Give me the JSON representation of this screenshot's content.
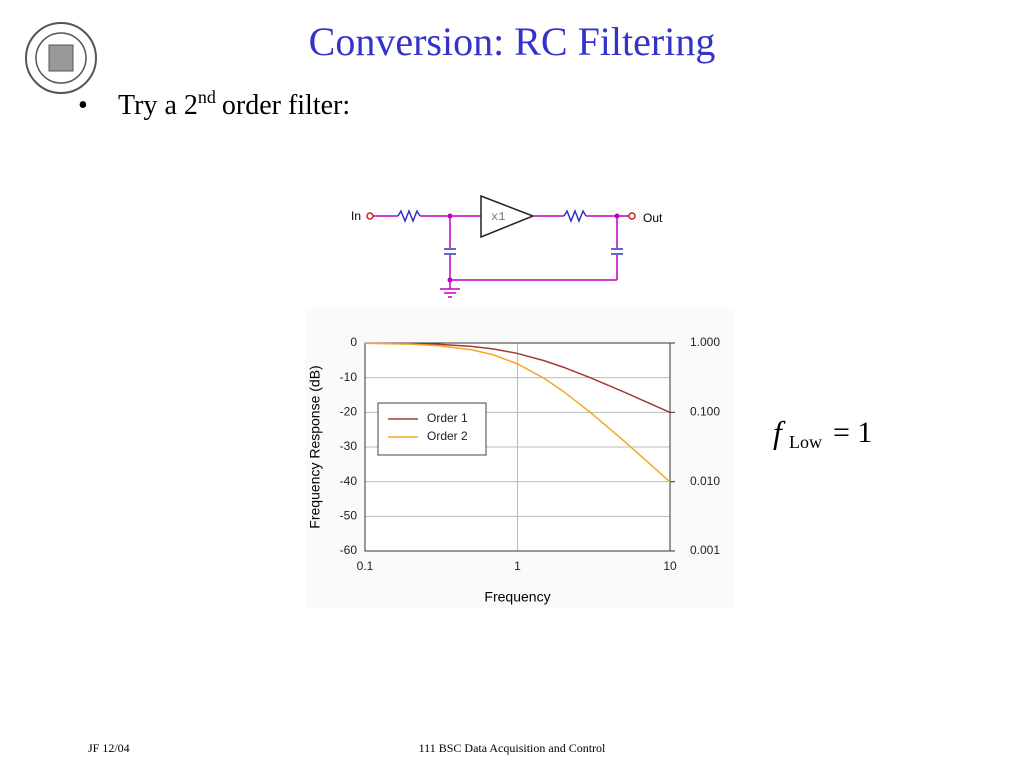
{
  "slide": {
    "title": "Conversion: RC Filtering",
    "bullet": {
      "marker": "•",
      "text": "Try a 2",
      "sup": "nd",
      "rest": "order filter:"
    },
    "circuit": {
      "input": "In",
      "output": "Out",
      "buffer": "x1"
    },
    "formula": {
      "lhs": "f",
      "sub": "Low",
      "rhs": "= 1"
    },
    "footer": {
      "left": "JF 12/04",
      "center": "111 BSC Data Acquisition and Control"
    }
  },
  "chart_data": {
    "type": "line",
    "x_label": "Frequency",
    "y_label": "Frequency Response (dB)",
    "x": [
      0.1,
      0.2,
      0.3,
      0.5,
      0.7,
      1,
      1.5,
      2,
      3,
      5,
      7,
      10
    ],
    "series": [
      {
        "name": "Order 1",
        "color": "#a33a3a",
        "values": [
          -0.04,
          -0.17,
          -0.37,
          -0.97,
          -1.74,
          -3.01,
          -5.12,
          -6.99,
          -10,
          -14.15,
          -17,
          -20.04
        ]
      },
      {
        "name": "Order 2",
        "color": "#f5a623",
        "values": [
          -0.09,
          -0.34,
          -0.75,
          -1.94,
          -3.47,
          -6.02,
          -10.24,
          -13.98,
          -20,
          -28.3,
          -34,
          -40.09
        ]
      }
    ],
    "xlim": [
      0.1,
      10
    ],
    "xticks": [
      0.1,
      1,
      10
    ],
    "xlog": true,
    "ylim": [
      -60,
      0
    ],
    "yticks": [
      0,
      -10,
      -20,
      -30,
      -40,
      -50,
      -60
    ],
    "y2lim": [
      0.001,
      1
    ],
    "y2log": true,
    "y2ticks": [
      {
        "value": 1,
        "label": "1.000"
      },
      {
        "value": 0.1,
        "label": "0.100"
      },
      {
        "value": 0.01,
        "label": "0.010"
      },
      {
        "value": 0.001,
        "label": "0.001"
      }
    ],
    "grid": true,
    "legend": "left"
  }
}
